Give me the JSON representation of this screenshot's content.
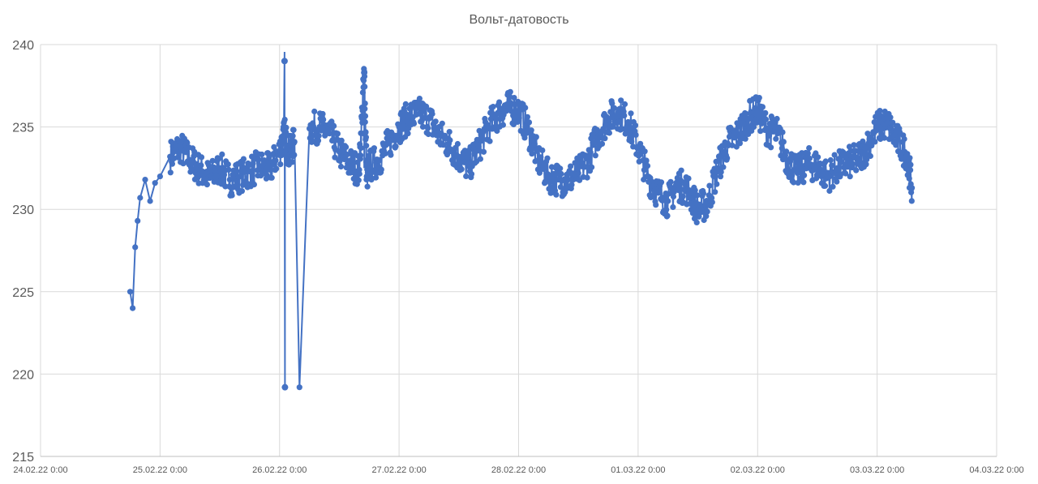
{
  "chart_data": {
    "type": "line",
    "title": "Вольт-датовость",
    "xlabel": "",
    "ylabel": "",
    "ylim": [
      215,
      240
    ],
    "yticks": [
      215,
      220,
      225,
      230,
      235,
      240
    ],
    "ytick_labels": [
      "215",
      "220",
      "225",
      "230",
      "235",
      "240"
    ],
    "xlim": [
      "2022-02-24 00:00",
      "2022-03-04 00:00"
    ],
    "xticks": [
      "2022-02-24 00:00",
      "2022-02-25 00:00",
      "2022-02-26 00:00",
      "2022-02-27 00:00",
      "2022-02-28 00:00",
      "2022-03-01 00:00",
      "2022-03-02 00:00",
      "2022-03-03 00:00",
      "2022-03-04 00:00"
    ],
    "xtick_labels": [
      "24.02.22 0:00",
      "25.02.22 0:00",
      "26.02.22 0:00",
      "27.02.22 0:00",
      "28.02.22 0:00",
      "01.03.22 0:00",
      "02.03.22 0:00",
      "03.03.22 0:00",
      "04.03.22 0:00"
    ],
    "grid": true,
    "legend": "none",
    "series_color": "#4472C4",
    "series": [
      {
        "x": [
          "2022-02-24 18:00",
          "2022-02-24 18:30",
          "2022-02-24 19:00",
          "2022-02-24 19:30",
          "2022-02-24 20:00",
          "2022-02-24 21:00",
          "2022-02-24 22:00",
          "2022-02-24 23:00",
          "2022-02-25 00:00",
          "2022-02-25 02:00",
          "2022-02-25 04:00",
          "2022-02-25 06:00",
          "2022-02-25 08:00",
          "2022-02-25 10:00",
          "2022-02-25 12:00",
          "2022-02-25 14:00",
          "2022-02-25 16:00",
          "2022-02-25 18:00",
          "2022-02-25 20:00",
          "2022-02-25 22:00",
          "2022-02-26 00:00",
          "2022-02-26 01:00",
          "2022-02-26 02:00",
          "2022-02-26 03:00",
          "2022-02-26 04:00",
          "2022-02-26 06:00",
          "2022-02-26 08:00",
          "2022-02-26 10:00",
          "2022-02-26 12:00",
          "2022-02-26 14:00",
          "2022-02-26 16:00",
          "2022-02-26 17:00",
          "2022-02-26 17:30",
          "2022-02-26 18:00",
          "2022-02-26 20:00",
          "2022-02-26 22:00",
          "2022-02-27 00:00",
          "2022-02-27 02:00",
          "2022-02-27 04:00",
          "2022-02-27 06:00",
          "2022-02-27 08:00",
          "2022-02-27 10:00",
          "2022-02-27 12:00",
          "2022-02-27 14:00",
          "2022-02-27 16:00",
          "2022-02-27 18:00",
          "2022-02-27 20:00",
          "2022-02-27 22:00",
          "2022-02-28 00:00",
          "2022-02-28 02:00",
          "2022-02-28 04:00",
          "2022-02-28 06:00",
          "2022-02-28 08:00",
          "2022-02-28 10:00",
          "2022-02-28 12:00",
          "2022-02-28 14:00",
          "2022-02-28 16:00",
          "2022-02-28 18:00",
          "2022-02-28 20:00",
          "2022-02-28 22:00",
          "2022-03-01 00:00",
          "2022-03-01 02:00",
          "2022-03-01 04:00",
          "2022-03-01 06:00",
          "2022-03-01 08:00",
          "2022-03-01 10:00",
          "2022-03-01 12:00",
          "2022-03-01 14:00",
          "2022-03-01 16:00",
          "2022-03-01 18:00",
          "2022-03-01 20:00",
          "2022-03-01 22:00",
          "2022-03-02 00:00",
          "2022-03-02 02:00",
          "2022-03-02 04:00",
          "2022-03-02 06:00",
          "2022-03-02 08:00",
          "2022-03-02 10:00",
          "2022-03-02 12:00",
          "2022-03-02 14:00",
          "2022-03-02 16:00",
          "2022-03-02 18:00",
          "2022-03-02 20:00",
          "2022-03-02 22:00",
          "2022-03-03 00:00",
          "2022-03-03 02:00",
          "2022-03-03 04:00",
          "2022-03-03 06:00",
          "2022-03-03 07:00"
        ],
        "y": [
          225.0,
          224.0,
          227.7,
          229.3,
          230.7,
          231.8,
          230.5,
          231.6,
          232.0,
          233.2,
          233.8,
          233.0,
          232.4,
          231.9,
          232.5,
          231.8,
          232.0,
          232.3,
          232.6,
          232.4,
          233.5,
          234.6,
          233.3,
          234.1,
          219.2,
          234.9,
          235.0,
          234.6,
          233.5,
          232.8,
          232.4,
          238.3,
          232.0,
          232.6,
          233.0,
          234.0,
          235.0,
          235.6,
          235.8,
          235.5,
          234.5,
          234.0,
          233.2,
          232.6,
          233.8,
          235.0,
          235.8,
          236.2,
          236.0,
          234.8,
          233.0,
          232.0,
          231.8,
          231.8,
          232.2,
          233.0,
          234.6,
          235.5,
          235.9,
          235.3,
          233.8,
          232.0,
          231.0,
          230.5,
          231.5,
          231.2,
          230.0,
          230.4,
          232.5,
          234.0,
          234.5,
          235.5,
          236.0,
          234.8,
          234.6,
          233.0,
          232.2,
          232.8,
          232.6,
          232.0,
          232.5,
          232.8,
          233.0,
          233.8,
          235.0,
          235.2,
          234.2,
          233.3,
          231.3
        ]
      }
    ],
    "annotations": [
      {
        "x": "2022-02-26 01:00",
        "y": 239.0
      },
      {
        "x": "2022-02-26 01:05",
        "y": 219.2
      },
      {
        "x": "2022-02-26 17:00",
        "y": 238.3
      }
    ]
  }
}
